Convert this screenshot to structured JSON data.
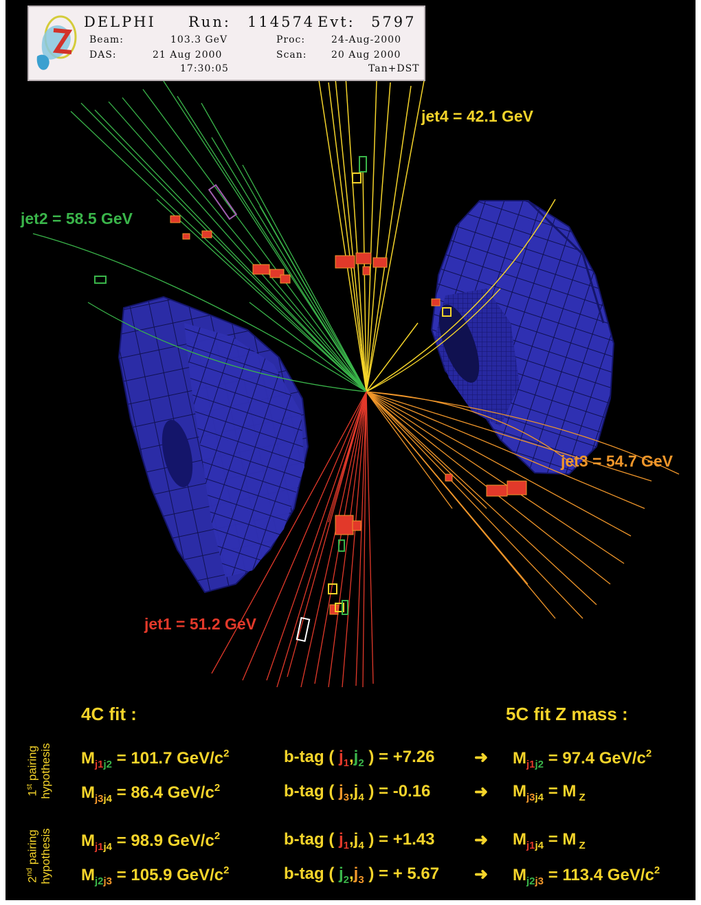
{
  "header": {
    "experiment": "DELPHI",
    "run_label": "Run:",
    "run_value": "114574",
    "evt_label": "Evt:",
    "evt_value": "5797",
    "beam_label": "Beam:",
    "beam_value": "103.3 GeV",
    "proc_label": "Proc:",
    "proc_value": "24-Aug-2000",
    "das_label": "DAS:",
    "das_value": "21 Aug 2000",
    "scan_label": "Scan:",
    "scan_value": "20 Aug 2000",
    "time_value": "17:30:05",
    "tan_value": "Tan+DST"
  },
  "jets": {
    "jet1": "jet1 = 51.2 GeV",
    "jet2": "jet2 = 58.5 GeV",
    "jet3": "jet3 = 54.7 GeV",
    "jet4": "jet4 = 42.1 GeV"
  },
  "colors": {
    "jet1": "#e2392a",
    "jet2": "#3ab54a",
    "jet3": "#f0962a",
    "jet4": "#f5d42a",
    "detector": "#2a2ca8"
  },
  "fit": {
    "fit4c_title": "4C fit :",
    "fit5c_title": "5C fit Z mass :",
    "first_pairing": {
      "ordinal": "1",
      "ordinal_suffix": "st",
      "line1": "pairing",
      "line2": "hypothesis"
    },
    "second_pairing": {
      "ordinal": "2",
      "ordinal_suffix": "nd",
      "line1": "pairing",
      "line2": "hypothesis"
    },
    "rows": [
      {
        "mass_label": "M",
        "pair": [
          "J1",
          "J2"
        ],
        "mass_value": "= 101.7 GeV/c",
        "btag_label": "b-tag (",
        "btag_j": [
          "j",
          "1",
          "j",
          "2"
        ],
        "btag_value": ") = +7.26",
        "arrow": "➜",
        "fit5c_label": "M",
        "fit5c_pair": [
          "J1",
          "J2"
        ],
        "fit5c_value": "= 97.4 GeV/c",
        "fit5c_sup": "2"
      },
      {
        "mass_label": "M",
        "pair": [
          "J3",
          "J4"
        ],
        "mass_value": "= 86.4 GeV/c",
        "btag_label": "b-tag (",
        "btag_j": [
          "j",
          "3",
          "j",
          "4"
        ],
        "btag_value": ") = -0.16",
        "arrow": "➜",
        "fit5c_label": "M",
        "fit5c_pair": [
          "J3",
          "J4"
        ],
        "fit5c_value": "= M",
        "fit5c_sub": "Z"
      },
      {
        "mass_label": "M",
        "pair": [
          "J1",
          "J4"
        ],
        "mass_value": "= 98.9 GeV/c",
        "btag_label": "b-tag (",
        "btag_j": [
          "j",
          "1",
          "j",
          "4"
        ],
        "btag_value": ") = +1.43",
        "arrow": "➜",
        "fit5c_label": "M",
        "fit5c_pair": [
          "J1",
          "J4"
        ],
        "fit5c_value": "= M",
        "fit5c_sub": "Z"
      },
      {
        "mass_label": "M",
        "pair": [
          "J2",
          "J3"
        ],
        "mass_value": "= 105.9 GeV/c",
        "btag_label": "b-tag (",
        "btag_j": [
          "j",
          "2",
          "j",
          "3"
        ],
        "btag_value": ") = + 5.67",
        "arrow": "➜",
        "fit5c_label": "M",
        "fit5c_pair": [
          "J2",
          "J3"
        ],
        "fit5c_value": "= 113.4 GeV/c",
        "fit5c_sup": "2"
      }
    ],
    "squared": "2"
  }
}
